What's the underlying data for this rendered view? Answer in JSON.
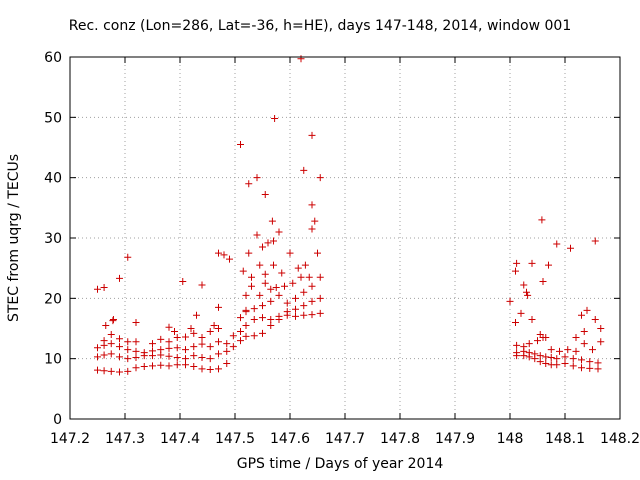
{
  "chart_data": {
    "type": "scatter",
    "title": "Rec. conz (Lon=286, Lat=-36, h=HE), days 147-148, 2014, window 001",
    "xlabel": "GPS time / Days of year 2014",
    "ylabel": "STEC from uqrg / TECUs",
    "xlim": [
      147.2,
      148.2
    ],
    "ylim": [
      0,
      60
    ],
    "xticks": [
      147.2,
      147.3,
      147.4,
      147.5,
      147.6,
      147.7,
      147.8,
      147.9,
      148.0,
      148.1,
      148.2
    ],
    "xtick_labels": [
      "147.2",
      "147.3",
      "147.4",
      "147.5",
      "147.6",
      "147.7",
      "147.8",
      "147.9",
      "148",
      "148.1",
      "148.2"
    ],
    "yticks": [
      0,
      10,
      20,
      30,
      40,
      50,
      60
    ],
    "ytick_labels": [
      "0",
      "10",
      "20",
      "30",
      "40",
      "50",
      "60"
    ],
    "grid": "dotted",
    "marker": "+",
    "color": "#cc0000",
    "series": [
      {
        "points": [
          [
            147.25,
            21.5
          ],
          [
            147.262,
            21.8
          ],
          [
            147.279,
            16.5
          ],
          [
            147.29,
            23.3
          ],
          [
            147.305,
            26.8
          ],
          [
            147.25,
            8.1
          ],
          [
            147.262,
            8.0
          ],
          [
            147.275,
            7.9
          ],
          [
            147.29,
            7.8
          ],
          [
            147.305,
            7.9
          ],
          [
            147.32,
            8.5
          ],
          [
            147.335,
            8.7
          ],
          [
            147.35,
            8.8
          ],
          [
            147.365,
            8.9
          ],
          [
            147.38,
            8.8
          ],
          [
            147.395,
            9.0
          ],
          [
            147.41,
            9.0
          ],
          [
            147.425,
            8.7
          ],
          [
            147.44,
            8.3
          ],
          [
            147.455,
            8.2
          ],
          [
            147.47,
            8.3
          ],
          [
            147.485,
            9.2
          ],
          [
            147.25,
            10.3
          ],
          [
            147.262,
            10.6
          ],
          [
            147.275,
            10.8
          ],
          [
            147.29,
            10.3
          ],
          [
            147.305,
            10.0
          ],
          [
            147.32,
            10.2
          ],
          [
            147.335,
            10.5
          ],
          [
            147.35,
            10.5
          ],
          [
            147.365,
            10.6
          ],
          [
            147.38,
            10.4
          ],
          [
            147.395,
            10.2
          ],
          [
            147.41,
            10.0
          ],
          [
            147.425,
            10.5
          ],
          [
            147.44,
            10.2
          ],
          [
            147.455,
            10.0
          ],
          [
            147.47,
            10.8
          ],
          [
            147.485,
            11.2
          ],
          [
            147.25,
            11.8
          ],
          [
            147.262,
            12.2
          ],
          [
            147.275,
            12.5
          ],
          [
            147.29,
            12.0
          ],
          [
            147.305,
            11.5
          ],
          [
            147.32,
            11.2
          ],
          [
            147.335,
            11.0
          ],
          [
            147.35,
            11.3
          ],
          [
            147.365,
            11.5
          ],
          [
            147.38,
            11.7
          ],
          [
            147.395,
            11.8
          ],
          [
            147.41,
            11.5
          ],
          [
            147.425,
            12.0
          ],
          [
            147.44,
            12.4
          ],
          [
            147.455,
            12.0
          ],
          [
            147.47,
            12.8
          ],
          [
            147.485,
            12.5
          ],
          [
            147.262,
            13.0
          ],
          [
            147.275,
            14.0
          ],
          [
            147.29,
            13.3
          ],
          [
            147.305,
            12.8
          ],
          [
            147.32,
            12.8
          ],
          [
            147.35,
            12.5
          ],
          [
            147.365,
            13.2
          ],
          [
            147.38,
            12.8
          ],
          [
            147.395,
            13.5
          ],
          [
            147.41,
            13.6
          ],
          [
            147.425,
            14.2
          ],
          [
            147.44,
            13.5
          ],
          [
            147.455,
            14.5
          ],
          [
            147.47,
            15.0
          ],
          [
            147.265,
            15.5
          ],
          [
            147.278,
            16.3
          ],
          [
            147.32,
            16.0
          ],
          [
            147.38,
            15.2
          ],
          [
            147.39,
            14.5
          ],
          [
            147.42,
            15.0
          ],
          [
            147.43,
            17.2
          ],
          [
            147.44,
            22.2
          ],
          [
            147.462,
            15.5
          ],
          [
            147.47,
            18.5
          ],
          [
            147.405,
            22.8
          ],
          [
            147.47,
            27.5
          ],
          [
            147.48,
            27.2
          ],
          [
            147.49,
            26.5
          ],
          [
            147.52,
            20.5
          ],
          [
            147.497,
            12.0
          ],
          [
            147.51,
            13.0
          ],
          [
            147.52,
            13.7
          ],
          [
            147.535,
            13.8
          ],
          [
            147.55,
            14.2
          ],
          [
            147.565,
            15.5
          ],
          [
            147.58,
            16.5
          ],
          [
            147.595,
            17.2
          ],
          [
            147.61,
            17.0
          ],
          [
            147.625,
            17.2
          ],
          [
            147.64,
            17.3
          ],
          [
            147.655,
            17.5
          ],
          [
            147.497,
            13.8
          ],
          [
            147.51,
            14.5
          ],
          [
            147.52,
            15.5
          ],
          [
            147.535,
            16.5
          ],
          [
            147.55,
            16.8
          ],
          [
            147.565,
            16.5
          ],
          [
            147.58,
            17.0
          ],
          [
            147.595,
            17.8
          ],
          [
            147.61,
            18.2
          ],
          [
            147.625,
            18.8
          ],
          [
            147.64,
            19.5
          ],
          [
            147.655,
            20.0
          ],
          [
            147.51,
            16.8
          ],
          [
            147.52,
            17.8
          ],
          [
            147.535,
            18.3
          ],
          [
            147.55,
            18.8
          ],
          [
            147.565,
            19.5
          ],
          [
            147.58,
            20.5
          ],
          [
            147.595,
            19.2
          ],
          [
            147.61,
            20.0
          ],
          [
            147.625,
            21.0
          ],
          [
            147.64,
            22.0
          ],
          [
            147.52,
            18.0
          ],
          [
            147.53,
            22.0
          ],
          [
            147.545,
            20.5
          ],
          [
            147.555,
            22.5
          ],
          [
            147.565,
            21.5
          ],
          [
            147.575,
            21.8
          ],
          [
            147.59,
            22.0
          ],
          [
            147.605,
            22.5
          ],
          [
            147.62,
            23.5
          ],
          [
            147.635,
            23.5
          ],
          [
            147.655,
            23.5
          ],
          [
            147.515,
            24.5
          ],
          [
            147.53,
            23.5
          ],
          [
            147.545,
            25.5
          ],
          [
            147.555,
            24.0
          ],
          [
            147.57,
            25.5
          ],
          [
            147.585,
            24.2
          ],
          [
            147.6,
            27.5
          ],
          [
            147.615,
            25.0
          ],
          [
            147.628,
            25.5
          ],
          [
            147.525,
            27.5
          ],
          [
            147.54,
            30.5
          ],
          [
            147.55,
            28.5
          ],
          [
            147.56,
            29.2
          ],
          [
            147.57,
            29.5
          ],
          [
            147.58,
            31.0
          ],
          [
            147.64,
            31.5
          ],
          [
            147.65,
            27.5
          ],
          [
            147.51,
            45.5
          ],
          [
            147.525,
            39.0
          ],
          [
            147.54,
            40.0
          ],
          [
            147.555,
            37.2
          ],
          [
            147.568,
            32.8
          ],
          [
            147.572,
            49.8
          ],
          [
            147.62,
            59.7
          ],
          [
            147.625,
            41.2
          ],
          [
            147.64,
            47.0
          ],
          [
            147.64,
            35.5
          ],
          [
            147.645,
            32.8
          ],
          [
            147.655,
            40.0
          ],
          [
            148.012,
            10.5
          ],
          [
            148.025,
            10.5
          ],
          [
            148.035,
            10.3
          ],
          [
            148.045,
            10.0
          ],
          [
            148.055,
            9.5
          ],
          [
            148.065,
            9.2
          ],
          [
            148.075,
            9.0
          ],
          [
            148.085,
            9.0
          ],
          [
            148.1,
            9.2
          ],
          [
            148.115,
            8.8
          ],
          [
            148.13,
            8.5
          ],
          [
            148.145,
            8.4
          ],
          [
            148.16,
            8.3
          ],
          [
            148.012,
            11.0
          ],
          [
            148.025,
            11.2
          ],
          [
            148.035,
            11.0
          ],
          [
            148.045,
            10.8
          ],
          [
            148.055,
            10.5
          ],
          [
            148.065,
            10.3
          ],
          [
            148.075,
            10.2
          ],
          [
            148.085,
            10.0
          ],
          [
            148.1,
            10.3
          ],
          [
            148.115,
            10.0
          ],
          [
            148.13,
            9.8
          ],
          [
            148.145,
            9.5
          ],
          [
            148.16,
            9.3
          ],
          [
            148.012,
            12.2
          ],
          [
            148.025,
            12.0
          ],
          [
            148.035,
            12.5
          ],
          [
            148.05,
            13.0
          ],
          [
            148.06,
            13.5
          ],
          [
            148.075,
            11.5
          ],
          [
            148.09,
            11.2
          ],
          [
            148.105,
            11.5
          ],
          [
            148.12,
            11.2
          ],
          [
            148.135,
            12.5
          ],
          [
            148.15,
            11.5
          ],
          [
            148.165,
            12.8
          ],
          [
            148.01,
            16.0
          ],
          [
            148.02,
            17.5
          ],
          [
            148.03,
            21.0
          ],
          [
            148.04,
            16.5
          ],
          [
            148.055,
            14.0
          ],
          [
            148.065,
            13.5
          ],
          [
            148.12,
            13.5
          ],
          [
            148.135,
            14.5
          ],
          [
            148.14,
            18.0
          ],
          [
            148.155,
            16.5
          ],
          [
            148.165,
            15.0
          ],
          [
            148.01,
            24.5
          ],
          [
            148.012,
            25.8
          ],
          [
            148.025,
            22.2
          ],
          [
            148.032,
            20.5
          ],
          [
            148.04,
            25.8
          ],
          [
            148.06,
            22.8
          ],
          [
            148.07,
            25.5
          ],
          [
            148.058,
            33.0
          ],
          [
            148.085,
            29.0
          ],
          [
            148.11,
            28.3
          ],
          [
            148.155,
            29.5
          ],
          [
            148.13,
            17.2
          ],
          [
            148.0,
            19.5
          ]
        ]
      }
    ]
  }
}
